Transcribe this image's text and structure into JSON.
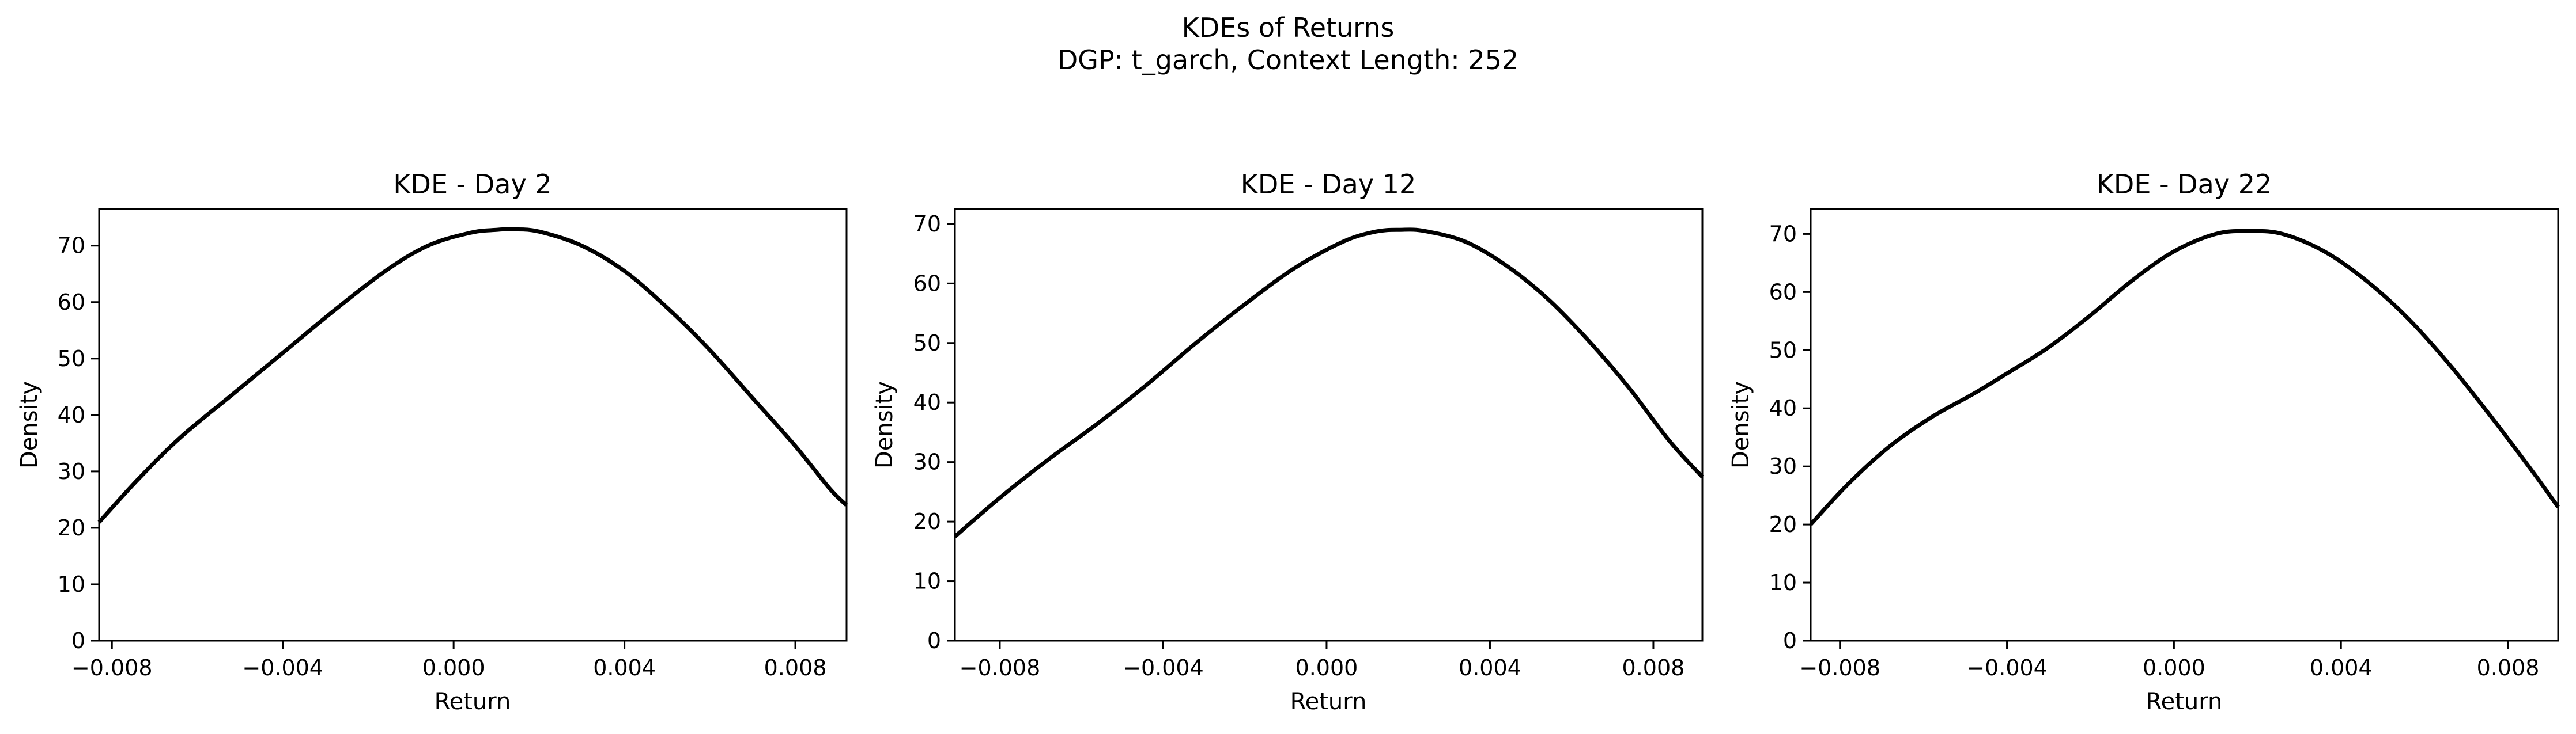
{
  "figure": {
    "title_line1": "KDEs of Returns",
    "title_line2": "DGP: t_garch, Context Length: 252"
  },
  "colors": {
    "curve": "#000000",
    "axes": "#000000",
    "background": "#ffffff"
  },
  "chart_data": [
    {
      "type": "line",
      "title": "KDE - Day 2",
      "xlabel": "Return",
      "ylabel": "Density",
      "xlim": [
        -0.0083,
        0.0092
      ],
      "ylim": [
        0,
        76.5
      ],
      "xticks": [
        -0.008,
        -0.004,
        0.0,
        0.004,
        0.008
      ],
      "xtick_labels": [
        "−0.008",
        "−0.004",
        "0.000",
        "0.004",
        "0.008"
      ],
      "yticks": [
        0,
        10,
        20,
        30,
        40,
        50,
        60,
        70
      ],
      "ytick_labels": [
        "0",
        "10",
        "20",
        "30",
        "40",
        "50",
        "60",
        "70"
      ],
      "grid": false,
      "series": [
        {
          "x": [
            -0.0083,
            -0.0074,
            -0.0064,
            -0.0052,
            -0.004,
            -0.0028,
            -0.0016,
            -0.0006,
            0.0004,
            0.001,
            0.0014,
            0.002,
            0.003,
            0.004,
            0.005,
            0.006,
            0.007,
            0.008,
            0.0088,
            0.0092
          ],
          "y": [
            21,
            28.5,
            36,
            43.5,
            51,
            58.5,
            65.5,
            70,
            72.3,
            72.8,
            72.9,
            72.5,
            70,
            65.5,
            59,
            51.5,
            43,
            34.5,
            27,
            24
          ]
        }
      ]
    },
    {
      "type": "line",
      "title": "KDE - Day 12",
      "xlabel": "Return",
      "ylabel": "Density",
      "xlim": [
        -0.0091,
        0.0092
      ],
      "ylim": [
        0,
        72.5
      ],
      "xticks": [
        -0.008,
        -0.004,
        0.0,
        0.004,
        0.008
      ],
      "xtick_labels": [
        "−0.008",
        "−0.004",
        "0.000",
        "0.004",
        "0.008"
      ],
      "yticks": [
        0,
        10,
        20,
        30,
        40,
        50,
        60,
        70
      ],
      "ytick_labels": [
        "0",
        "10",
        "20",
        "30",
        "40",
        "50",
        "60",
        "70"
      ],
      "grid": false,
      "series": [
        {
          "x": [
            -0.0091,
            -0.008,
            -0.0068,
            -0.0056,
            -0.0044,
            -0.0032,
            -0.002,
            -0.0008,
            0.0004,
            0.0012,
            0.0018,
            0.0024,
            0.0034,
            0.0044,
            0.0054,
            0.0064,
            0.0074,
            0.0084,
            0.0092
          ],
          "y": [
            17.5,
            24,
            30.5,
            36.5,
            43,
            50,
            56.5,
            62.5,
            67,
            68.7,
            69,
            68.8,
            67,
            63,
            57.5,
            50.5,
            42.5,
            33.5,
            27.5
          ]
        }
      ]
    },
    {
      "type": "line",
      "title": "KDE - Day 22",
      "xlabel": "Return",
      "ylabel": "Density",
      "xlim": [
        -0.0087,
        0.0092
      ],
      "ylim": [
        0,
        74.3
      ],
      "xticks": [
        -0.008,
        -0.004,
        0.0,
        0.004,
        0.008
      ],
      "xtick_labels": [
        "−0.008",
        "−0.004",
        "0.000",
        "0.004",
        "0.008"
      ],
      "yticks": [
        0,
        10,
        20,
        30,
        40,
        50,
        60,
        70
      ],
      "ytick_labels": [
        "0",
        "10",
        "20",
        "30",
        "40",
        "50",
        "60",
        "70"
      ],
      "grid": false,
      "series": [
        {
          "x": [
            -0.0087,
            -0.0078,
            -0.0068,
            -0.0058,
            -0.0048,
            -0.004,
            -0.003,
            -0.002,
            -0.001,
            0.0,
            0.001,
            0.0018,
            0.0026,
            0.0036,
            0.0046,
            0.0056,
            0.0066,
            0.0076,
            0.0086,
            0.0092
          ],
          "y": [
            20,
            27,
            33.5,
            38.5,
            42.5,
            46,
            50.5,
            56,
            62,
            67,
            70,
            70.5,
            70,
            67,
            62,
            55.5,
            47.5,
            38.5,
            29,
            23
          ]
        }
      ]
    }
  ]
}
